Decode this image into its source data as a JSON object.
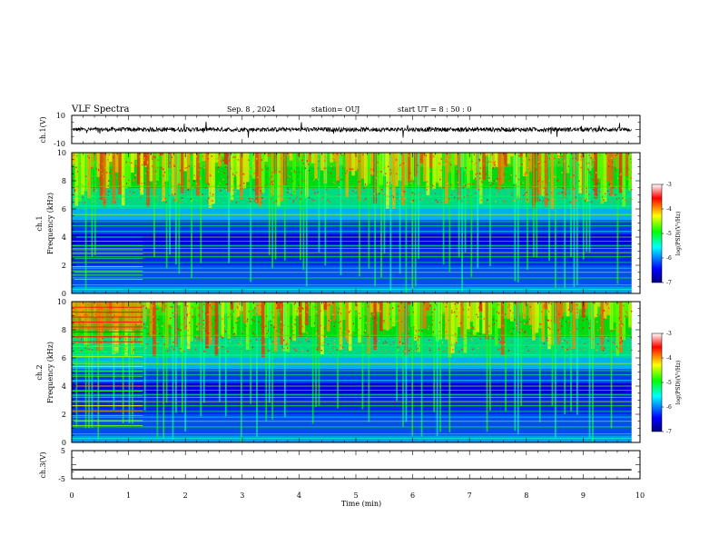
{
  "header": {
    "title": "VLF Spectra",
    "date": "Sep. 8 , 2024",
    "station": "station= OUJ",
    "start": "start  UT =  8 : 50 : 0"
  },
  "chart_data": [
    {
      "type": "line",
      "ylabel": "ch.1(V)",
      "ylim": [
        -10,
        10
      ],
      "ytick_labels": [
        "10",
        "-10"
      ],
      "baseline": 0.0,
      "noise_amplitude": 1.5
    },
    {
      "type": "heatmap",
      "ylabel_lines": [
        "ch.1",
        "Frequency (kHz)"
      ],
      "ylim": [
        0,
        10
      ],
      "ytick_labels": [
        "0",
        "2",
        "4",
        "6",
        "8",
        "10"
      ],
      "colorbar": {
        "label": "log(PSD)(V²/Hz)",
        "range": [
          -7,
          -3
        ],
        "tick_labels": [
          "-3",
          "-4",
          "-5",
          "-6",
          "-7"
        ],
        "colors": [
          "#000080",
          "#0000ff",
          "#00ffff",
          "#00ff00",
          "#ffff00",
          "#ff0000",
          "#ffffff"
        ]
      }
    },
    {
      "type": "heatmap",
      "ylabel_lines": [
        "ch.2",
        "Frequency (kHz)"
      ],
      "ylim": [
        0,
        10
      ],
      "ytick_labels": [
        "0",
        "2",
        "4",
        "6",
        "8",
        "10"
      ],
      "colorbar": {
        "label": "log(PSD)(V²/Hz)",
        "range": [
          -7,
          -3
        ],
        "tick_labels": [
          "-3",
          "-4",
          "-5",
          "-6",
          "-7"
        ],
        "colors": [
          "#000080",
          "#0000ff",
          "#00ffff",
          "#00ff00",
          "#ffff00",
          "#ff0000",
          "#ffffff"
        ]
      }
    },
    {
      "type": "line",
      "ylabel": "ch.3(V)",
      "ylim": [
        -5,
        5
      ],
      "ytick_labels": [
        "5",
        "-5"
      ],
      "value": -1.8
    }
  ],
  "x_axis": {
    "label": "Time  (min)",
    "xlim": [
      0,
      10
    ],
    "tick_labels": [
      "0",
      "1",
      "2",
      "3",
      "4",
      "5",
      "6",
      "7",
      "8",
      "9",
      "10"
    ],
    "data_end": 9.85
  }
}
